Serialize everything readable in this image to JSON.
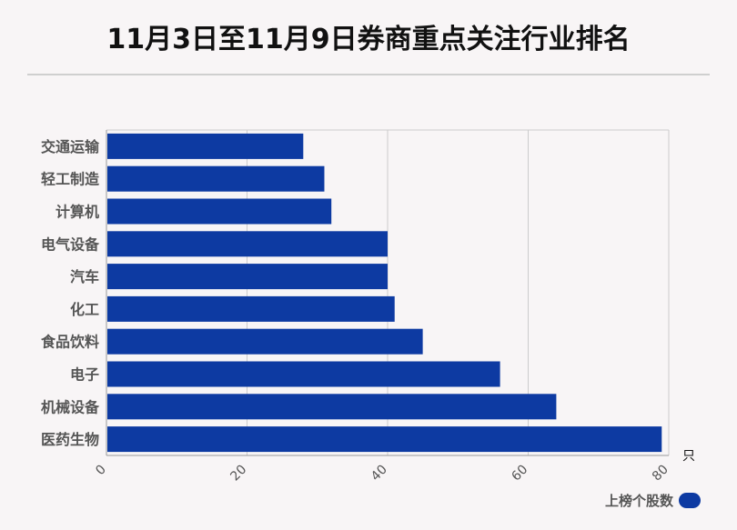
{
  "title": "11月3日至11月9日券商重点关注行业排名",
  "colors": {
    "bar": "#0d3aa2",
    "grid": "#cccccc",
    "axis": "#999999"
  },
  "chart_data": {
    "type": "bar",
    "orientation": "horizontal",
    "categories": [
      "交通运输",
      "轻工制造",
      "计算机",
      "电气设备",
      "汽车",
      "化工",
      "食品饮料",
      "电子",
      "机械设备",
      "医药生物"
    ],
    "series": [
      {
        "name": "上榜个股数",
        "values": [
          28,
          31,
          32,
          40,
          40,
          41,
          45,
          56,
          64,
          79
        ]
      }
    ],
    "xlim": [
      0,
      80
    ],
    "xticks": [
      "0",
      "20",
      "40",
      "60",
      "80"
    ],
    "unit": "只",
    "grid": true,
    "legend_position": "bottom-right"
  }
}
